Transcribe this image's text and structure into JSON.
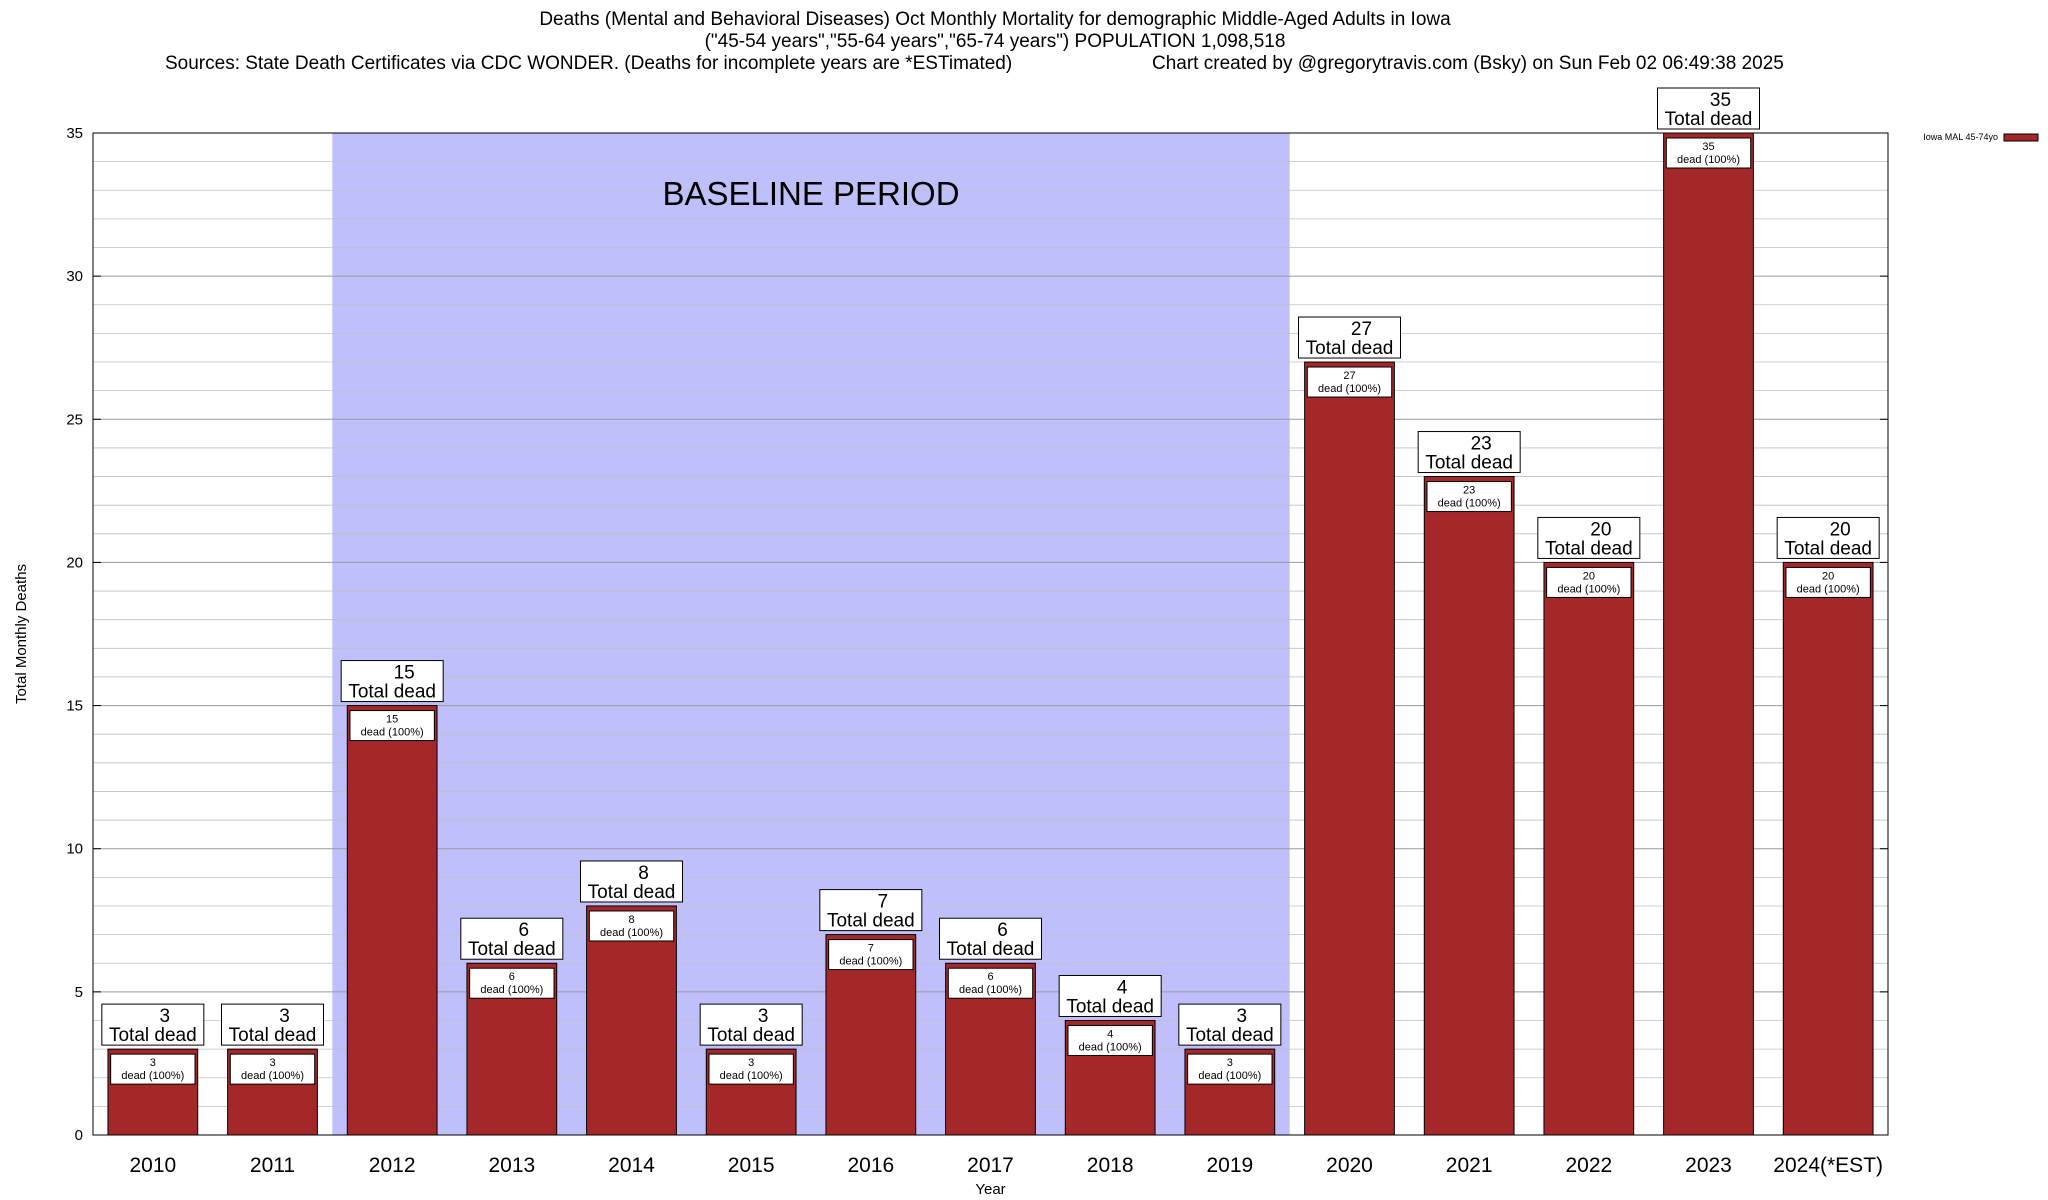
{
  "header": {
    "title_line1": "Deaths (Mental and Behavioral Diseases) Oct Monthly Mortality for demographic Middle-Aged Adults in Iowa",
    "title_line2": "(\"45-54 years\",\"55-64 years\",\"65-74 years\") POPULATION 1,098,518",
    "sources": "Sources: State Death Certificates via CDC WONDER. (Deaths for incomplete years are *ESTimated)",
    "credit": "Chart created by @gregorytravis.com (Bsky) on Sun Feb 02 06:49:38 2025"
  },
  "colors": {
    "bar": "#a4282a",
    "baseline_band": "#bfbffb",
    "grid": "#c0c0c0"
  },
  "chart_data": {
    "type": "bar",
    "title": "Deaths (Mental and Behavioral Diseases) Oct Monthly Mortality for demographic Middle-Aged Adults in Iowa",
    "xlabel": "Year",
    "ylabel": "Total Monthly Deaths",
    "ylim": [
      0,
      35
    ],
    "yticks": [
      0,
      5,
      10,
      15,
      20,
      25,
      30,
      35
    ],
    "grid": true,
    "legend_position": "top-right",
    "categories": [
      "2010",
      "2011",
      "2012",
      "2013",
      "2014",
      "2015",
      "2016",
      "2017",
      "2018",
      "2019",
      "2020",
      "2021",
      "2022",
      "2023",
      "2024(*EST)"
    ],
    "series": [
      {
        "name": "Iowa MAL 45-74yo",
        "values": [
          3,
          3,
          15,
          6,
          8,
          3,
          7,
          6,
          4,
          3,
          27,
          23,
          20,
          35,
          20
        ]
      }
    ],
    "total_label_text": "Total dead",
    "inner_label_text": "dead (100%)",
    "baseline_period": {
      "label": "BASELINE PERIOD",
      "from": "2012",
      "to": "2019"
    }
  }
}
